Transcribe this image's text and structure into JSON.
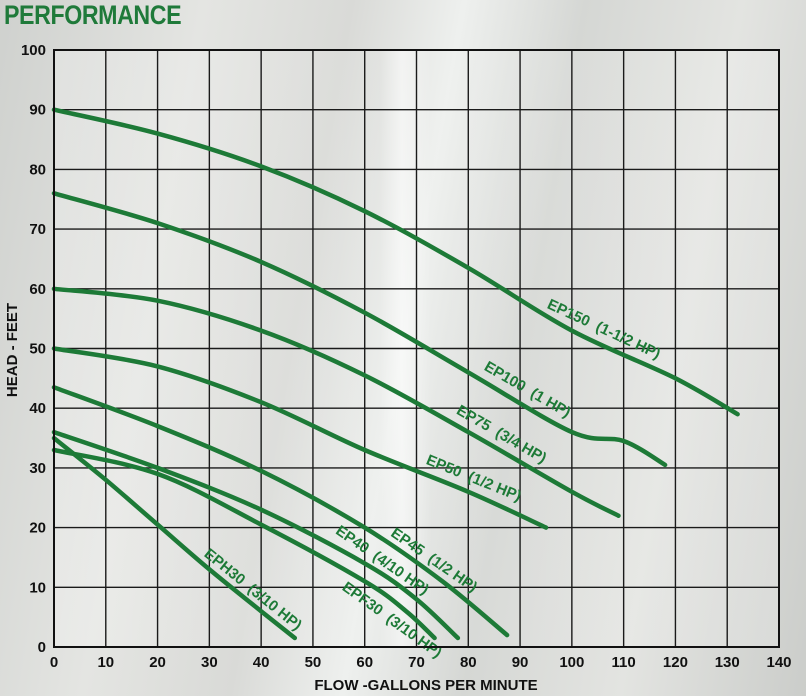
{
  "title": "PERFORMANCE",
  "chart_data": {
    "type": "line",
    "xlabel": "FLOW -GALLONS PER MINUTE",
    "ylabel": "HEAD - FEET",
    "xlim": [
      0,
      140
    ],
    "ylim": [
      0,
      100
    ],
    "xticks": [
      0,
      10,
      20,
      30,
      40,
      50,
      60,
      70,
      80,
      90,
      100,
      110,
      120,
      130,
      140
    ],
    "yticks": [
      0,
      10,
      20,
      30,
      40,
      50,
      60,
      70,
      80,
      90,
      100
    ],
    "grid": true,
    "line_color": "#1d7a37",
    "series": [
      {
        "name": "EP150  (1-1/2 HP)",
        "x": [
          0,
          20,
          40,
          60,
          80,
          100,
          120,
          132
        ],
        "y": [
          90,
          86,
          80.5,
          73,
          63.5,
          53,
          45,
          39
        ]
      },
      {
        "name": "EP100  (1 HP)",
        "x": [
          0,
          20,
          40,
          60,
          80,
          100,
          110,
          118
        ],
        "y": [
          76,
          71,
          64.5,
          56,
          46,
          36,
          34.5,
          30.5
        ]
      },
      {
        "name": "EP75  (3/4 HP)",
        "x": [
          0,
          20,
          40,
          60,
          80,
          100,
          109
        ],
        "y": [
          60,
          58,
          53,
          45.5,
          36,
          26,
          22
        ]
      },
      {
        "name": "EP50  (1/2 HP)",
        "x": [
          0,
          20,
          40,
          60,
          80,
          95
        ],
        "y": [
          50,
          47,
          41,
          33,
          26,
          20
        ]
      },
      {
        "name": "EP45  (1/2 HP)",
        "x": [
          0,
          20,
          40,
          60,
          75,
          87.5
        ],
        "y": [
          43.5,
          37,
          29.5,
          20,
          11,
          2
        ]
      },
      {
        "name": "EP40  (4/10 HP)",
        "x": [
          0,
          20,
          40,
          60,
          70,
          78
        ],
        "y": [
          36,
          30,
          23,
          14,
          8,
          1.5
        ]
      },
      {
        "name": "EPF30  (3/10 HP)",
        "x": [
          0,
          20,
          40,
          60,
          68,
          73.5
        ],
        "y": [
          33,
          29,
          20.5,
          11,
          6,
          1.5
        ]
      },
      {
        "name": "EPH30  (3/10 HP)",
        "x": [
          0,
          10,
          20,
          30,
          40,
          46.5
        ],
        "y": [
          35,
          28,
          20.5,
          13,
          6,
          1.5
        ]
      }
    ]
  }
}
